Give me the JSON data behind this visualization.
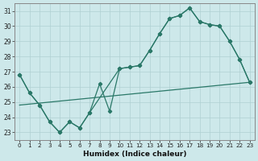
{
  "xlabel": "Humidex (Indice chaleur)",
  "xlim": [
    -0.5,
    23.5
  ],
  "ylim": [
    22.5,
    31.5
  ],
  "xticks": [
    0,
    1,
    2,
    3,
    4,
    5,
    6,
    7,
    8,
    9,
    10,
    11,
    12,
    13,
    14,
    15,
    16,
    17,
    18,
    19,
    20,
    21,
    22,
    23
  ],
  "yticks": [
    23,
    24,
    25,
    26,
    27,
    28,
    29,
    30,
    31
  ],
  "bg_color": "#cde8ea",
  "grid_color": "#b0d0d3",
  "line_color": "#2a7868",
  "main_x": [
    0,
    1,
    2,
    3,
    4,
    5,
    6,
    7,
    8,
    9,
    10,
    11,
    12,
    13,
    14,
    15,
    16,
    17,
    18,
    19,
    20,
    21,
    22,
    23
  ],
  "main_y": [
    26.8,
    25.6,
    24.8,
    23.7,
    23.0,
    23.7,
    23.3,
    24.3,
    26.2,
    24.4,
    27.2,
    27.3,
    27.4,
    28.4,
    29.5,
    30.5,
    30.7,
    31.2,
    30.3,
    30.1,
    30.0,
    29.0,
    27.8,
    26.3
  ],
  "hull_x": [
    0,
    1,
    2,
    3,
    4,
    5,
    6,
    7,
    10,
    11,
    12,
    13,
    14,
    15,
    16,
    17,
    18,
    19,
    20,
    21,
    22,
    23
  ],
  "hull_y": [
    26.8,
    25.6,
    24.8,
    23.7,
    23.0,
    23.7,
    23.3,
    24.3,
    27.2,
    27.3,
    27.4,
    28.4,
    29.5,
    30.5,
    30.7,
    31.2,
    30.3,
    30.1,
    30.0,
    29.0,
    27.8,
    26.3
  ],
  "trend_x": [
    0,
    23
  ],
  "trend_y": [
    24.8,
    26.3
  ]
}
